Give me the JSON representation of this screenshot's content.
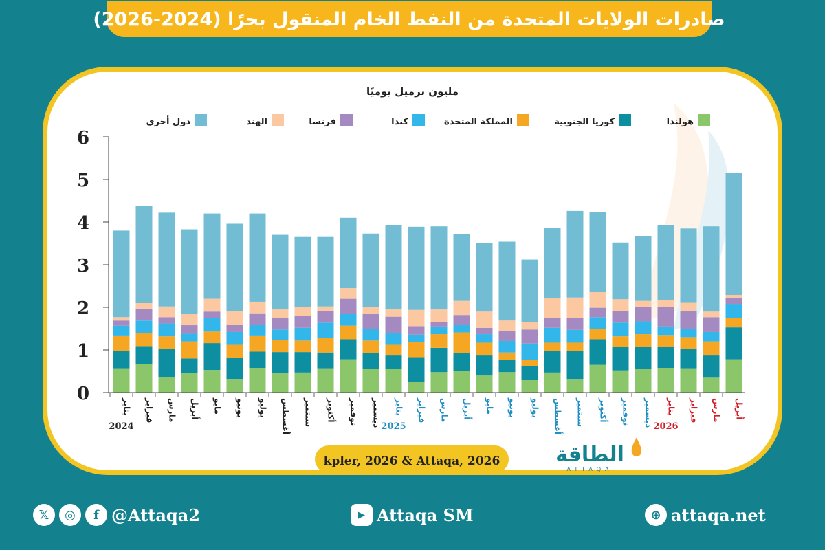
{
  "header": {
    "title": "صادرات الولايات المتحدة من النفط الخام المنقول بحرًا (2024-2026)"
  },
  "source": "kpler, 2026 & Attaqa, 2026",
  "logo": {
    "name": "الطاقة",
    "sub": "ATTAQA"
  },
  "footer": {
    "social_handle": "@Attaqa2",
    "youtube": "Attaqa SM",
    "website": "attaqa.net",
    "icons": [
      "x-icon",
      "instagram-icon",
      "facebook-icon",
      "youtube-icon",
      "globe-icon"
    ]
  },
  "chart_data": {
    "type": "bar",
    "stacked": true,
    "unit_label": "مليون برميل يوميًا",
    "ylim": [
      0,
      6
    ],
    "yticks": [
      0,
      1,
      2,
      3,
      4,
      5,
      6
    ],
    "grid": false,
    "legend_position": "top",
    "categories": [
      "يناير",
      "فبراير",
      "مارس",
      "أبريل",
      "مايو",
      "يونيو",
      "يوليو",
      "أغسطس",
      "سبتمبر",
      "أكتوبر",
      "نوفمبر",
      "ديسمبر",
      "يناير",
      "فبراير",
      "مارس",
      "أبريل",
      "مايو",
      "يونيو",
      "يوليو",
      "أغسطس",
      "سبتمبر",
      "أكتوبر",
      "نوفمبر",
      "ديسمبر",
      "يناير",
      "فبراير",
      "مارس",
      "أبريل"
    ],
    "category_colors": [
      "#222222",
      "#222222",
      "#222222",
      "#222222",
      "#222222",
      "#222222",
      "#222222",
      "#222222",
      "#222222",
      "#222222",
      "#222222",
      "#222222",
      "#1f8fc4",
      "#1f8fc4",
      "#1f8fc4",
      "#1f8fc4",
      "#1f8fc4",
      "#1f8fc4",
      "#1f8fc4",
      "#1f8fc4",
      "#1f8fc4",
      "#1f8fc4",
      "#1f8fc4",
      "#1f8fc4",
      "#d11f2a",
      "#d11f2a",
      "#d11f2a",
      "#d11f2a"
    ],
    "years": [
      {
        "label": "2024",
        "start": 0,
        "color": "#222222"
      },
      {
        "label": "2025",
        "start": 12,
        "color": "#1f8fc4"
      },
      {
        "label": "2026",
        "start": 24,
        "color": "#d11f2a"
      }
    ],
    "series": [
      {
        "name": "هولندا",
        "color": "#8cc66b",
        "values": [
          0.57,
          0.67,
          0.37,
          0.45,
          0.53,
          0.32,
          0.58,
          0.45,
          0.47,
          0.57,
          0.78,
          0.55,
          0.55,
          0.25,
          0.48,
          0.5,
          0.4,
          0.48,
          0.3,
          0.47,
          0.32,
          0.65,
          0.52,
          0.55,
          0.58,
          0.57,
          0.35,
          0.78
        ]
      },
      {
        "name": "كوريا الجنوبية",
        "color": "#0d8ea1",
        "values": [
          0.4,
          0.42,
          0.65,
          0.35,
          0.63,
          0.5,
          0.38,
          0.5,
          0.48,
          0.37,
          0.47,
          0.37,
          0.32,
          0.58,
          0.57,
          0.43,
          0.47,
          0.28,
          0.32,
          0.5,
          0.65,
          0.6,
          0.55,
          0.52,
          0.49,
          0.46,
          0.52,
          0.75
        ]
      },
      {
        "name": "المملكة المتحدة",
        "color": "#f5a623",
        "values": [
          0.37,
          0.3,
          0.3,
          0.4,
          0.27,
          0.3,
          0.38,
          0.28,
          0.27,
          0.35,
          0.32,
          0.3,
          0.25,
          0.35,
          0.32,
          0.48,
          0.3,
          0.18,
          0.15,
          0.2,
          0.2,
          0.25,
          0.25,
          0.3,
          0.28,
          0.27,
          0.33,
          0.22
        ]
      },
      {
        "name": "كندا",
        "color": "#33b7ea",
        "values": [
          0.23,
          0.3,
          0.3,
          0.18,
          0.32,
          0.3,
          0.25,
          0.25,
          0.3,
          0.35,
          0.28,
          0.28,
          0.28,
          0.18,
          0.18,
          0.18,
          0.2,
          0.27,
          0.38,
          0.35,
          0.3,
          0.27,
          0.32,
          0.3,
          0.2,
          0.2,
          0.22,
          0.33
        ]
      },
      {
        "name": "فرنسا",
        "color": "#a48ac0",
        "values": [
          0.12,
          0.28,
          0.15,
          0.2,
          0.15,
          0.17,
          0.27,
          0.27,
          0.28,
          0.28,
          0.35,
          0.35,
          0.38,
          0.2,
          0.1,
          0.23,
          0.15,
          0.23,
          0.33,
          0.23,
          0.28,
          0.22,
          0.27,
          0.33,
          0.45,
          0.42,
          0.35,
          0.13
        ]
      },
      {
        "name": "الهند",
        "color": "#fbc8a2",
        "values": [
          0.08,
          0.13,
          0.25,
          0.27,
          0.3,
          0.32,
          0.27,
          0.2,
          0.2,
          0.1,
          0.25,
          0.15,
          0.17,
          0.38,
          0.3,
          0.33,
          0.38,
          0.25,
          0.17,
          0.47,
          0.48,
          0.38,
          0.28,
          0.15,
          0.17,
          0.2,
          0.13,
          0.08
        ]
      },
      {
        "name": "دول أخرى",
        "color": "#72bdd3",
        "values": [
          2.03,
          2.28,
          2.2,
          1.98,
          2.0,
          2.05,
          2.07,
          1.75,
          1.65,
          1.63,
          1.65,
          1.73,
          1.98,
          1.95,
          1.95,
          1.57,
          1.6,
          1.85,
          1.47,
          1.65,
          2.03,
          1.87,
          1.33,
          1.52,
          1.76,
          1.73,
          2.0,
          2.86
        ]
      }
    ]
  }
}
